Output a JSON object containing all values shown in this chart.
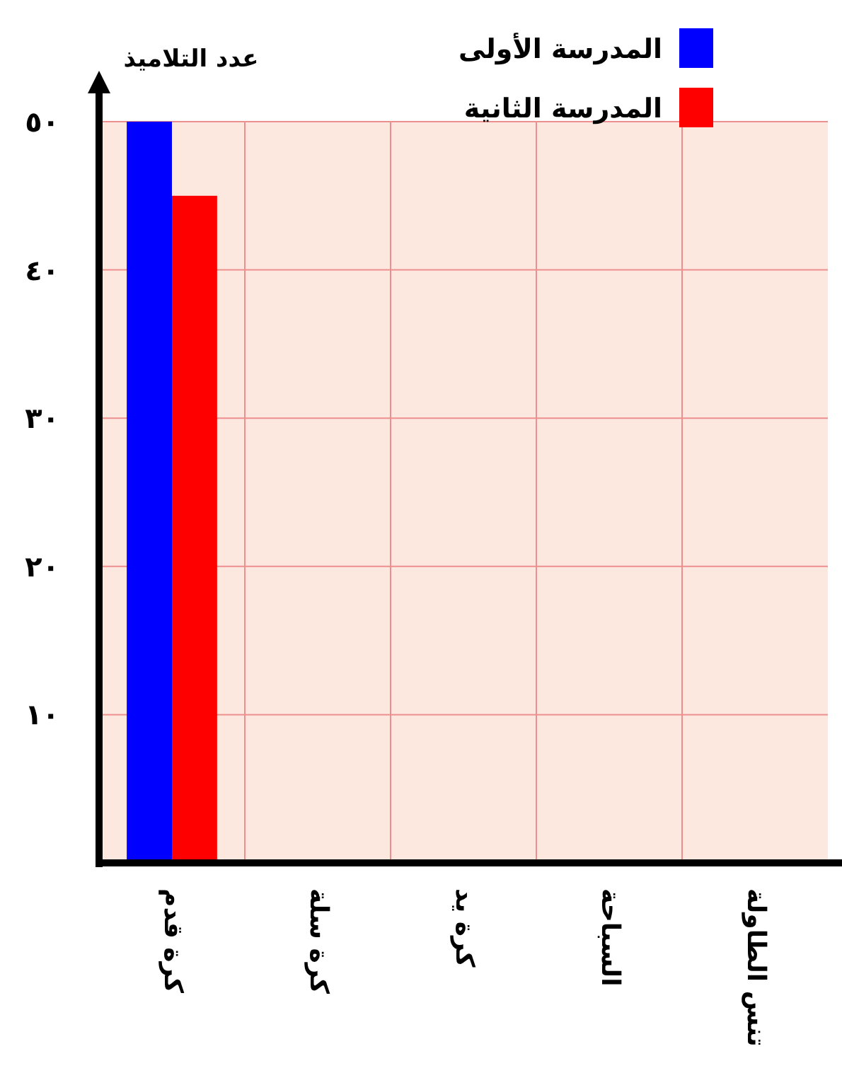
{
  "chart_data": {
    "type": "bar",
    "ylabel": "عدد التلاميذ",
    "categories": [
      "كرة قدم",
      "كرة سلة",
      "كرة يد",
      "السباحة",
      "تنس الطاولة"
    ],
    "series": [
      {
        "name": "المدرسة الأولى",
        "color": "#0000ff",
        "values": [
          50,
          null,
          null,
          null,
          null
        ]
      },
      {
        "name": "المدرسة الثانية",
        "color": "#ff0000",
        "values": [
          45,
          null,
          null,
          null,
          null
        ]
      }
    ],
    "ylim": [
      0,
      50
    ],
    "yticks": [
      {
        "value": 10,
        "label": "١٠"
      },
      {
        "value": 20,
        "label": "٢٠"
      },
      {
        "value": 30,
        "label": "٣٠"
      },
      {
        "value": 40,
        "label": "٤٠"
      },
      {
        "value": 50,
        "label": "٥٠"
      }
    ],
    "grid": true,
    "legend": "top"
  }
}
